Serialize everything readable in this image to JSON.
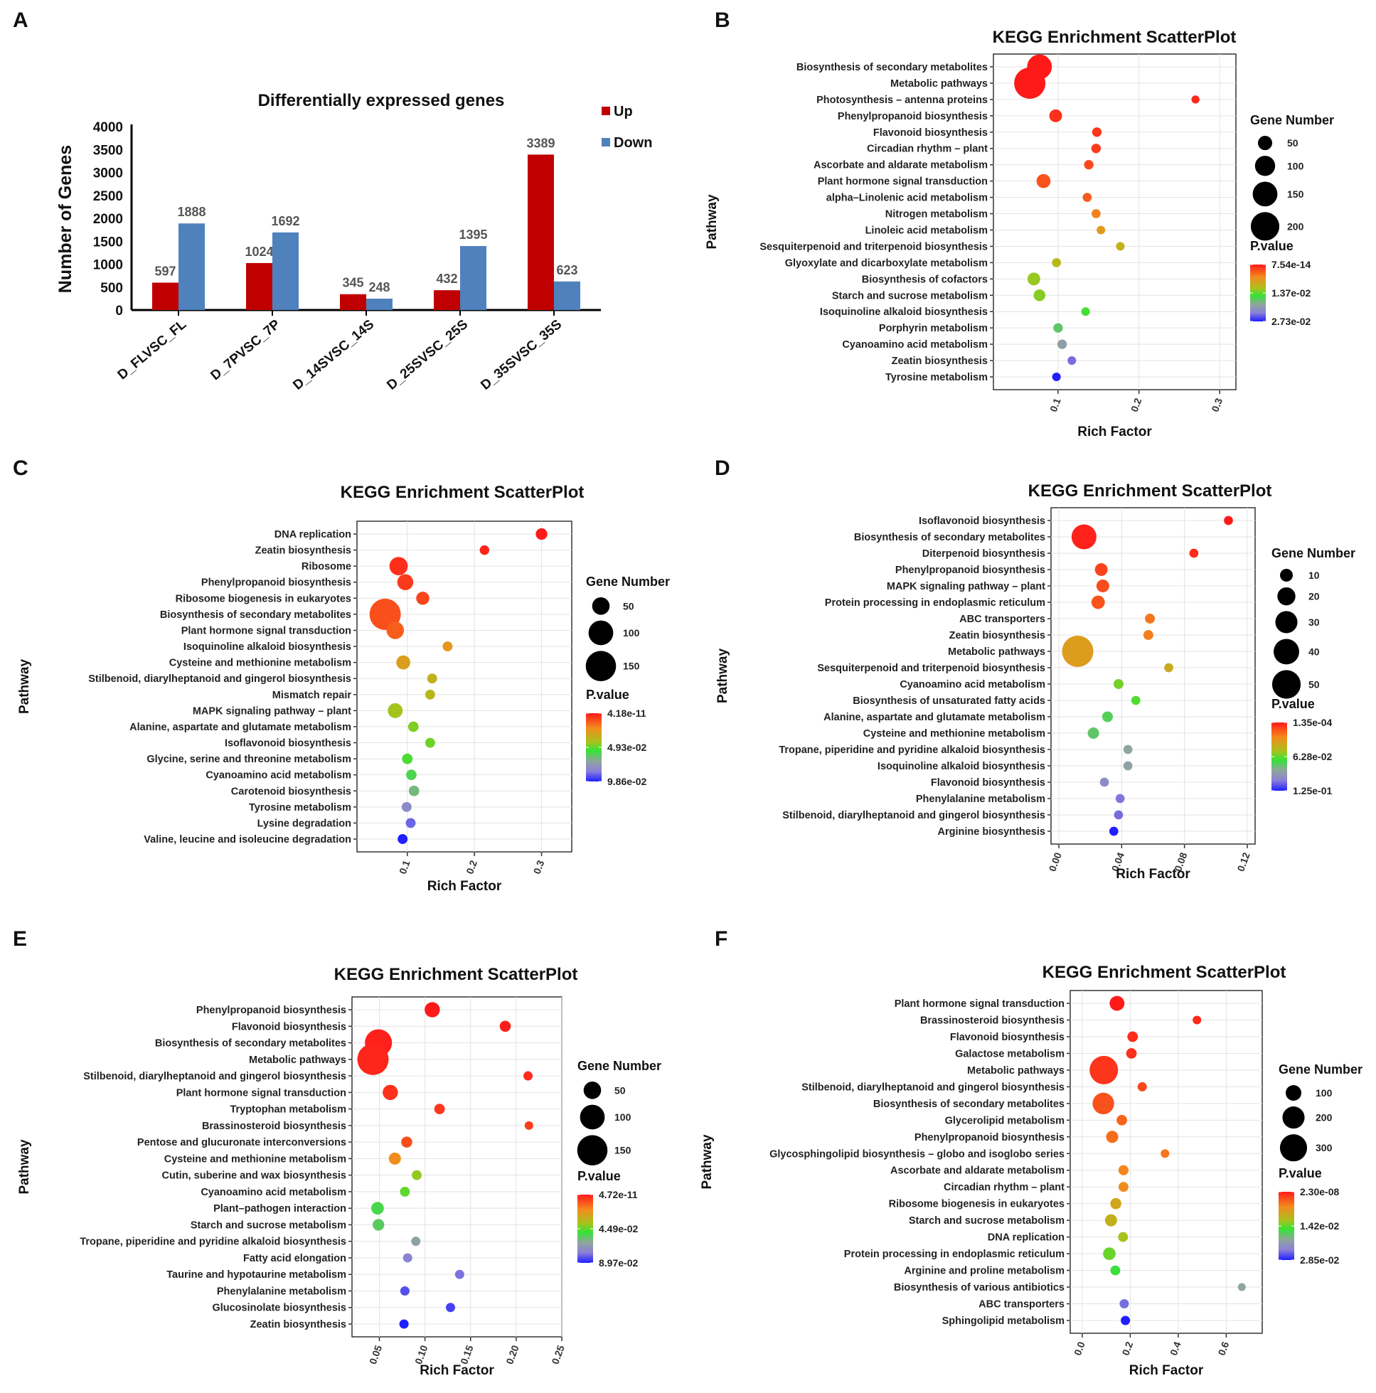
{
  "chart_data": [
    {
      "panel": "A",
      "type": "bar",
      "title": "Differentially expressed genes",
      "xlabel": "",
      "ylabel": "Number of Genes",
      "ylim": [
        0,
        4000
      ],
      "yticks": [
        0,
        500,
        1000,
        1500,
        2000,
        2500,
        3000,
        3500,
        4000
      ],
      "categories": [
        "D_FLVSC_FL",
        "D_7PVSC_7P",
        "D_14SVSC_14S",
        "D_25SVSC_25S",
        "D_35SVSC_35S"
      ],
      "series": [
        {
          "name": "Up",
          "color": "#c00000",
          "values": [
            597,
            1024,
            345,
            432,
            3389
          ]
        },
        {
          "name": "Down",
          "color": "#4f81bd",
          "values": [
            1888,
            1692,
            248,
            1395,
            623
          ]
        }
      ],
      "legend_position": "top-right"
    },
    {
      "panel": "B",
      "type": "scatter",
      "title": "KEGG Enrichment ScatterPlot",
      "xlabel": "Rich Factor",
      "ylabel": "Pathway",
      "xlim": [
        0.02,
        0.32
      ],
      "xticks": [
        "0.1",
        "0.2",
        "0.3"
      ],
      "size_legend": {
        "title": "Gene Number",
        "labels": [
          "50",
          "100",
          "150",
          "200"
        ],
        "values": [
          50,
          100,
          150,
          200
        ]
      },
      "color_legend": {
        "title": "P.value",
        "labels": [
          "7.54e-14",
          "1.37e-02",
          "2.73e-02"
        ]
      },
      "points": [
        {
          "pathway": "Biosynthesis of secondary metabolites",
          "x": 0.077,
          "genes": 150,
          "p": 0.0
        },
        {
          "pathway": "Metabolic pathways",
          "x": 0.065,
          "genes": 240,
          "p": 0.0
        },
        {
          "pathway": "Photosynthesis – antenna proteins",
          "x": 0.27,
          "genes": 16,
          "p": 0.0008
        },
        {
          "pathway": "Phenylpropanoid biosynthesis",
          "x": 0.097,
          "genes": 40,
          "p": 0.0012
        },
        {
          "pathway": "Flavonoid biosynthesis",
          "x": 0.148,
          "genes": 22,
          "p": 0.0015
        },
        {
          "pathway": "Circadian rhythm – plant",
          "x": 0.147,
          "genes": 22,
          "p": 0.0018
        },
        {
          "pathway": "Ascorbate and aldarate metabolism",
          "x": 0.138,
          "genes": 22,
          "p": 0.0025
        },
        {
          "pathway": "Plant hormone signal transduction",
          "x": 0.082,
          "genes": 48,
          "p": 0.003
        },
        {
          "pathway": "alpha–Linolenic acid metabolism",
          "x": 0.136,
          "genes": 20,
          "p": 0.0035
        },
        {
          "pathway": "Nitrogen metabolism",
          "x": 0.147,
          "genes": 20,
          "p": 0.0055
        },
        {
          "pathway": "Linoleic acid metabolism",
          "x": 0.153,
          "genes": 18,
          "p": 0.0075
        },
        {
          "pathway": "Sesquiterpenoid and triterpenoid biosynthesis",
          "x": 0.177,
          "genes": 18,
          "p": 0.0095
        },
        {
          "pathway": "Glyoxylate and dicarboxylate metabolism",
          "x": 0.098,
          "genes": 20,
          "p": 0.0105
        },
        {
          "pathway": "Biosynthesis of cofactors",
          "x": 0.07,
          "genes": 40,
          "p": 0.012
        },
        {
          "pathway": "Starch and sucrose metabolism",
          "x": 0.077,
          "genes": 34,
          "p": 0.0125
        },
        {
          "pathway": "Isoquinoline alkaloid biosynthesis",
          "x": 0.134,
          "genes": 18,
          "p": 0.0145
        },
        {
          "pathway": "Porphyrin metabolism",
          "x": 0.1,
          "genes": 22,
          "p": 0.017
        },
        {
          "pathway": "Cyanoamino acid metabolism",
          "x": 0.105,
          "genes": 22,
          "p": 0.02
        },
        {
          "pathway": "Zeatin biosynthesis",
          "x": 0.117,
          "genes": 18,
          "p": 0.024
        },
        {
          "pathway": "Tyrosine metabolism",
          "x": 0.098,
          "genes": 18,
          "p": 0.0273
        }
      ]
    },
    {
      "panel": "C",
      "type": "scatter",
      "title": "KEGG Enrichment ScatterPlot",
      "xlabel": "Rich Factor",
      "ylabel": "Pathway",
      "xlim": [
        0.025,
        0.345
      ],
      "xticks": [
        "0.1",
        "0.2",
        "0.3"
      ],
      "size_legend": {
        "title": "Gene Number",
        "labels": [
          "50",
          "100",
          "150"
        ],
        "values": [
          50,
          100,
          150
        ]
      },
      "color_legend": {
        "title": "P.value",
        "labels": [
          "4.18e-11",
          "4.93e-02",
          "9.86e-02"
        ]
      },
      "points": [
        {
          "pathway": "DNA replication",
          "x": 0.3,
          "genes": 22,
          "p": 0.0
        },
        {
          "pathway": "Zeatin biosynthesis",
          "x": 0.215,
          "genes": 15,
          "p": 0.002
        },
        {
          "pathway": "Ribosome",
          "x": 0.087,
          "genes": 55,
          "p": 0.004
        },
        {
          "pathway": "Phenylpropanoid biosynthesis",
          "x": 0.097,
          "genes": 42,
          "p": 0.006
        },
        {
          "pathway": "Ribosome biogenesis in eukaryotes",
          "x": 0.123,
          "genes": 28,
          "p": 0.008
        },
        {
          "pathway": "Biosynthesis of secondary metabolites",
          "x": 0.067,
          "genes": 160,
          "p": 0.01
        },
        {
          "pathway": "Plant hormone signal transduction",
          "x": 0.082,
          "genes": 50,
          "p": 0.013
        },
        {
          "pathway": "Isoquinoline alkaloid biosynthesis",
          "x": 0.16,
          "genes": 16,
          "p": 0.025
        },
        {
          "pathway": "Cysteine and methionine metabolism",
          "x": 0.094,
          "genes": 32,
          "p": 0.028
        },
        {
          "pathway": "Stilbenoid, diarylheptanoid and gingerol biosynthesis",
          "x": 0.137,
          "genes": 16,
          "p": 0.035
        },
        {
          "pathway": "Mismatch repair",
          "x": 0.134,
          "genes": 16,
          "p": 0.037
        },
        {
          "pathway": "MAPK signaling pathway – plant",
          "x": 0.082,
          "genes": 36,
          "p": 0.042
        },
        {
          "pathway": "Alanine, aspartate and glutamate metabolism",
          "x": 0.109,
          "genes": 18,
          "p": 0.046
        },
        {
          "pathway": "Isoflavonoid biosynthesis",
          "x": 0.134,
          "genes": 16,
          "p": 0.048
        },
        {
          "pathway": "Glycine, serine and threonine metabolism",
          "x": 0.1,
          "genes": 18,
          "p": 0.052
        },
        {
          "pathway": "Cyanoamino acid metabolism",
          "x": 0.106,
          "genes": 18,
          "p": 0.058
        },
        {
          "pathway": "Carotenoid biosynthesis",
          "x": 0.11,
          "genes": 18,
          "p": 0.065
        },
        {
          "pathway": "Tyrosine metabolism",
          "x": 0.099,
          "genes": 16,
          "p": 0.08
        },
        {
          "pathway": "Lysine degradation",
          "x": 0.105,
          "genes": 16,
          "p": 0.088
        },
        {
          "pathway": "Valine, leucine and isoleucine degradation",
          "x": 0.093,
          "genes": 16,
          "p": 0.0986
        }
      ]
    },
    {
      "panel": "D",
      "type": "scatter",
      "title": "KEGG Enrichment ScatterPlot",
      "xlabel": "Rich Factor",
      "ylabel": "Pathway",
      "xlim": [
        -0.005,
        0.125
      ],
      "xticks": [
        "0.00",
        "0.04",
        "0.08",
        "0.12"
      ],
      "size_legend": {
        "title": "Gene Number",
        "labels": [
          "10",
          "20",
          "30",
          "40",
          "50"
        ],
        "values": [
          10,
          20,
          30,
          40,
          50
        ]
      },
      "color_legend": {
        "title": "P.value",
        "labels": [
          "1.35e-04",
          "6.28e-02",
          "1.25e-01"
        ]
      },
      "points": [
        {
          "pathway": "Isoflavonoid biosynthesis",
          "x": 0.108,
          "genes": 5,
          "p": 0.0001
        },
        {
          "pathway": "Biosynthesis of secondary metabolites",
          "x": 0.016,
          "genes": 38,
          "p": 0.002
        },
        {
          "pathway": "Diterpenoid biosynthesis",
          "x": 0.086,
          "genes": 5,
          "p": 0.004
        },
        {
          "pathway": "Phenylpropanoid biosynthesis",
          "x": 0.027,
          "genes": 10,
          "p": 0.01
        },
        {
          "pathway": "MAPK signaling pathway – plant",
          "x": 0.028,
          "genes": 10,
          "p": 0.012
        },
        {
          "pathway": "Protein processing in endoplasmic reticulum",
          "x": 0.025,
          "genes": 11,
          "p": 0.014
        },
        {
          "pathway": "ABC transporters",
          "x": 0.058,
          "genes": 6,
          "p": 0.022
        },
        {
          "pathway": "Zeatin biosynthesis",
          "x": 0.057,
          "genes": 6,
          "p": 0.024
        },
        {
          "pathway": "Metabolic pathways",
          "x": 0.012,
          "genes": 60,
          "p": 0.035
        },
        {
          "pathway": "Sesquiterpenoid and triterpenoid biosynthesis",
          "x": 0.07,
          "genes": 5,
          "p": 0.042
        },
        {
          "pathway": "Cyanoamino acid metabolism",
          "x": 0.038,
          "genes": 6,
          "p": 0.06
        },
        {
          "pathway": "Biosynthesis of unsaturated fatty acids",
          "x": 0.049,
          "genes": 5,
          "p": 0.065
        },
        {
          "pathway": "Alanine, aspartate and glutamate metabolism",
          "x": 0.031,
          "genes": 7,
          "p": 0.075
        },
        {
          "pathway": "Cysteine and methionine metabolism",
          "x": 0.022,
          "genes": 8,
          "p": 0.078
        },
        {
          "pathway": "Tropane, piperidine and pyridine alkaloid biosynthesis",
          "x": 0.044,
          "genes": 5,
          "p": 0.088
        },
        {
          "pathway": "Isoquinoline alkaloid biosynthesis",
          "x": 0.044,
          "genes": 5,
          "p": 0.09
        },
        {
          "pathway": "Flavonoid biosynthesis",
          "x": 0.029,
          "genes": 5,
          "p": 0.1
        },
        {
          "pathway": "Phenylalanine metabolism",
          "x": 0.039,
          "genes": 5,
          "p": 0.108
        },
        {
          "pathway": "Stilbenoid, diarylheptanoid and gingerol biosynthesis",
          "x": 0.038,
          "genes": 5,
          "p": 0.11
        },
        {
          "pathway": "Arginine biosynthesis",
          "x": 0.035,
          "genes": 5,
          "p": 0.125
        }
      ]
    },
    {
      "panel": "E",
      "type": "scatter",
      "title": "KEGG Enrichment ScatterPlot",
      "xlabel": "Rich Factor",
      "ylabel": "Pathway",
      "xlim": [
        0.02,
        0.25
      ],
      "xticks": [
        "0.05",
        "0.10",
        "0.15",
        "0.20",
        "0.25"
      ],
      "size_legend": {
        "title": "Gene Number",
        "labels": [
          "50",
          "100",
          "150"
        ],
        "values": [
          50,
          100,
          150
        ]
      },
      "color_legend": {
        "title": "P.value",
        "labels": [
          "4.72e-11",
          "4.49e-02",
          "8.97e-02"
        ]
      },
      "points": [
        {
          "pathway": "Phenylpropanoid biosynthesis",
          "x": 0.108,
          "genes": 38,
          "p": 0.0
        },
        {
          "pathway": "Flavonoid biosynthesis",
          "x": 0.188,
          "genes": 20,
          "p": 0.0005
        },
        {
          "pathway": "Biosynthesis of secondary metabolites",
          "x": 0.049,
          "genes": 120,
          "p": 0.001
        },
        {
          "pathway": "Metabolic pathways",
          "x": 0.043,
          "genes": 160,
          "p": 0.002
        },
        {
          "pathway": "Stilbenoid, diarylheptanoid and gingerol biosynthesis",
          "x": 0.213,
          "genes": 14,
          "p": 0.003
        },
        {
          "pathway": "Plant hormone signal transduction",
          "x": 0.062,
          "genes": 38,
          "p": 0.004
        },
        {
          "pathway": "Tryptophan metabolism",
          "x": 0.116,
          "genes": 18,
          "p": 0.005
        },
        {
          "pathway": "Brassinosteroid biosynthesis",
          "x": 0.214,
          "genes": 12,
          "p": 0.006
        },
        {
          "pathway": "Pentose and glucuronate interconversions",
          "x": 0.08,
          "genes": 20,
          "p": 0.009
        },
        {
          "pathway": "Cysteine and methionine metabolism",
          "x": 0.067,
          "genes": 24,
          "p": 0.02
        },
        {
          "pathway": "Cutin, suberine and wax biosynthesis",
          "x": 0.091,
          "genes": 16,
          "p": 0.04
        },
        {
          "pathway": "Cyanoamino acid metabolism",
          "x": 0.078,
          "genes": 16,
          "p": 0.045
        },
        {
          "pathway": "Plant–pathogen interaction",
          "x": 0.048,
          "genes": 26,
          "p": 0.052
        },
        {
          "pathway": "Starch and sucrose metabolism",
          "x": 0.049,
          "genes": 22,
          "p": 0.055
        },
        {
          "pathway": "Tropane, piperidine and pyridine alkaloid biosynthesis",
          "x": 0.09,
          "genes": 14,
          "p": 0.065
        },
        {
          "pathway": "Fatty acid elongation",
          "x": 0.081,
          "genes": 14,
          "p": 0.075
        },
        {
          "pathway": "Taurine and hypotaurine metabolism",
          "x": 0.138,
          "genes": 14,
          "p": 0.078
        },
        {
          "pathway": "Phenylalanine metabolism",
          "x": 0.078,
          "genes": 14,
          "p": 0.083
        },
        {
          "pathway": "Glucosinolate biosynthesis",
          "x": 0.128,
          "genes": 14,
          "p": 0.085
        },
        {
          "pathway": "Zeatin biosynthesis",
          "x": 0.077,
          "genes": 14,
          "p": 0.0897
        }
      ]
    },
    {
      "panel": "F",
      "type": "scatter",
      "title": "KEGG Enrichment ScatterPlot",
      "xlabel": "Rich Factor",
      "ylabel": "Pathway",
      "xlim": [
        -0.05,
        0.75
      ],
      "xticks": [
        "0.0",
        "0.2",
        "0.4",
        "0.6"
      ],
      "size_legend": {
        "title": "Gene Number",
        "labels": [
          "100",
          "200",
          "300"
        ],
        "values": [
          100,
          200,
          300
        ]
      },
      "color_legend": {
        "title": "P.value",
        "labels": [
          "2.30e-08",
          "1.42e-02",
          "2.85e-02"
        ]
      },
      "points": [
        {
          "pathway": "Plant hormone signal transduction",
          "x": 0.145,
          "genes": 90,
          "p": 0.0
        },
        {
          "pathway": "Brassinosteroid biosynthesis",
          "x": 0.478,
          "genes": 30,
          "p": 0.0008
        },
        {
          "pathway": "Flavonoid biosynthesis",
          "x": 0.21,
          "genes": 45,
          "p": 0.001
        },
        {
          "pathway": "Galactose metabolism",
          "x": 0.205,
          "genes": 45,
          "p": 0.0012
        },
        {
          "pathway": "Metabolic pathways",
          "x": 0.09,
          "genes": 330,
          "p": 0.0015
        },
        {
          "pathway": "Stilbenoid, diarylheptanoid and gingerol biosynthesis",
          "x": 0.25,
          "genes": 35,
          "p": 0.0025
        },
        {
          "pathway": "Biosynthesis of secondary metabolites",
          "x": 0.088,
          "genes": 190,
          "p": 0.003
        },
        {
          "pathway": "Glycerolipid metabolism",
          "x": 0.165,
          "genes": 45,
          "p": 0.004
        },
        {
          "pathway": "Phenylpropanoid biosynthesis",
          "x": 0.125,
          "genes": 60,
          "p": 0.0045
        },
        {
          "pathway": "Glycosphingolipid biosynthesis – globo and isoglobo series",
          "x": 0.345,
          "genes": 30,
          "p": 0.005
        },
        {
          "pathway": "Ascorbate and aldarate metabolism",
          "x": 0.172,
          "genes": 42,
          "p": 0.006
        },
        {
          "pathway": "Circadian rhythm – plant",
          "x": 0.172,
          "genes": 40,
          "p": 0.0065
        },
        {
          "pathway": "Ribosome biogenesis in eukaryotes",
          "x": 0.14,
          "genes": 50,
          "p": 0.009
        },
        {
          "pathway": "Starch and sucrose metabolism",
          "x": 0.12,
          "genes": 60,
          "p": 0.01
        },
        {
          "pathway": "DNA replication",
          "x": 0.17,
          "genes": 40,
          "p": 0.012
        },
        {
          "pathway": "Protein processing in endoplasmic reticulum",
          "x": 0.113,
          "genes": 65,
          "p": 0.014
        },
        {
          "pathway": "Arginine and proline metabolism",
          "x": 0.138,
          "genes": 40,
          "p": 0.016
        },
        {
          "pathway": "Biosynthesis of various antibiotics",
          "x": 0.665,
          "genes": 25,
          "p": 0.02
        },
        {
          "pathway": "ABC transporters",
          "x": 0.175,
          "genes": 35,
          "p": 0.025
        },
        {
          "pathway": "Sphingolipid metabolism",
          "x": 0.18,
          "genes": 35,
          "p": 0.0285
        }
      ]
    }
  ]
}
